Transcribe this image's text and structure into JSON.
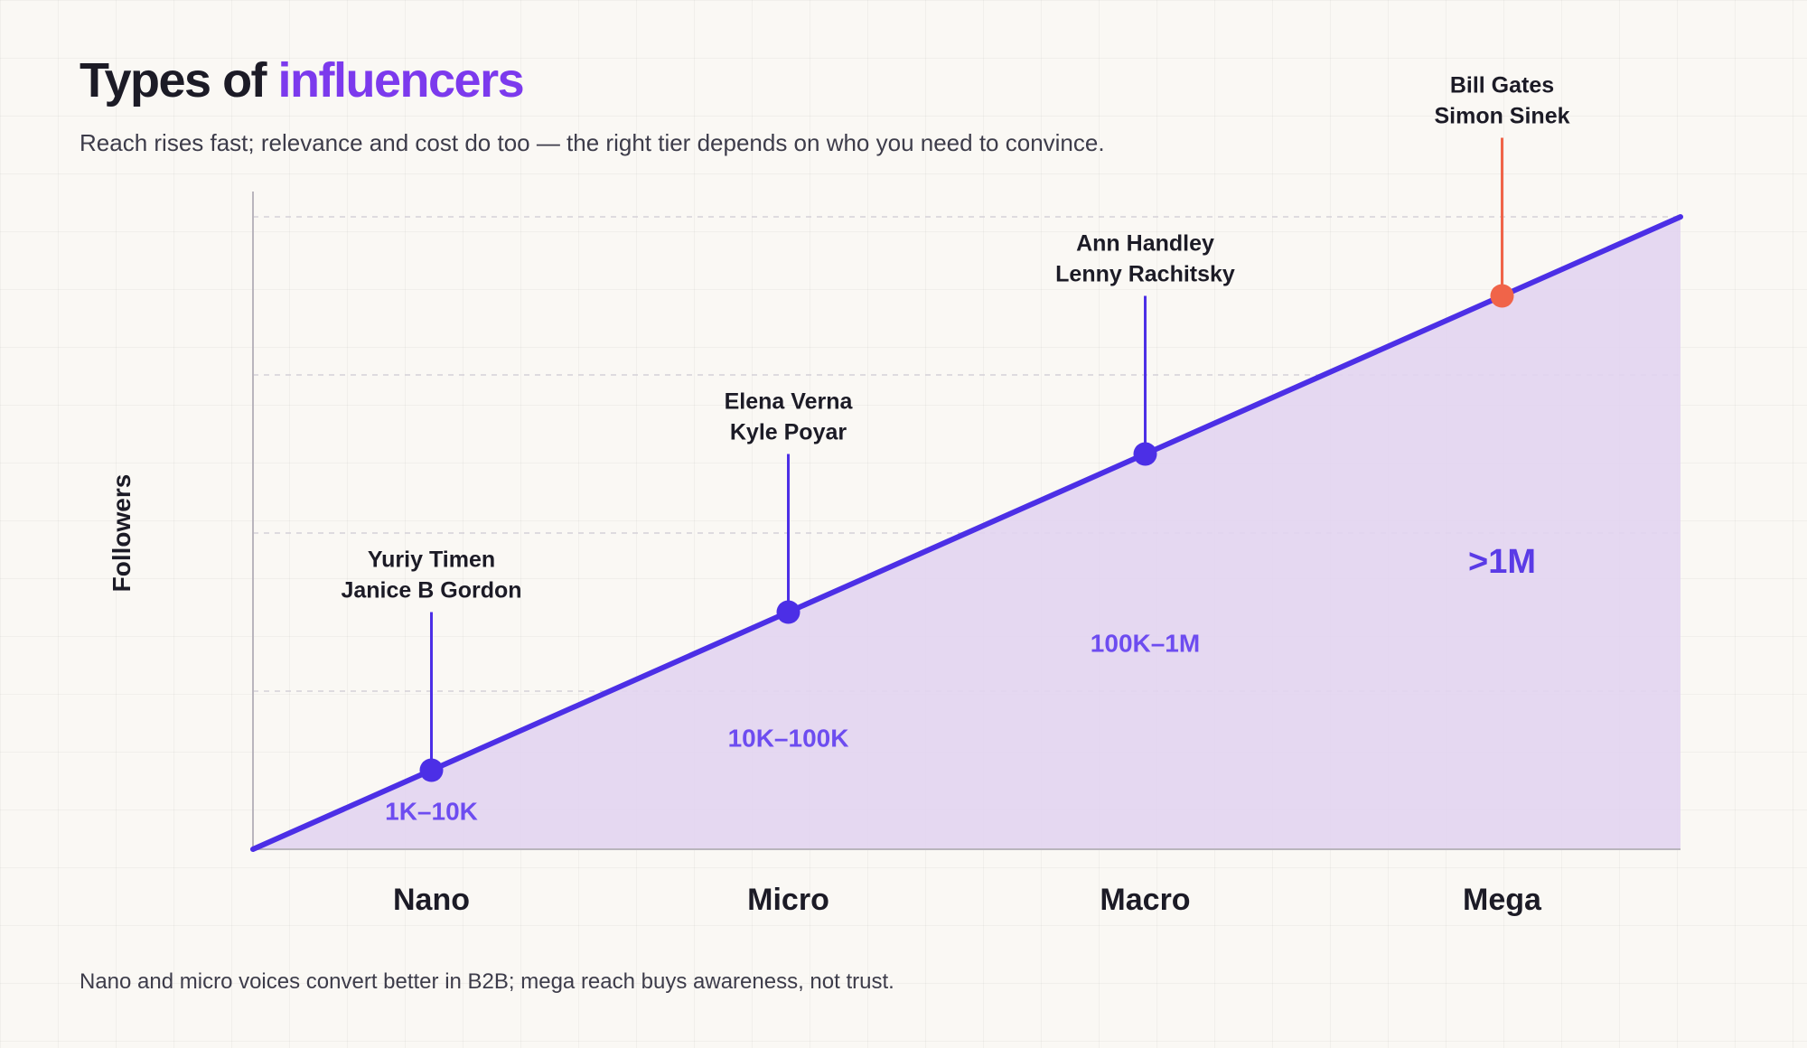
{
  "header": {
    "title_prefix": "Types of ",
    "title_accent": "influencers",
    "subtitle": "Reach rises fast; relevance and cost do too — the right tier depends on who you need to convince."
  },
  "footer": {
    "note": "Nano and micro voices convert better in B2B; mega reach buys awareness, not trust."
  },
  "colors": {
    "accent": "#7c3aed",
    "line": "#4c2fe6",
    "area": "#e2d4f1",
    "highlight": "#f06449"
  },
  "chart_data": {
    "type": "area",
    "title": "Types of influencers",
    "ylabel": "Followers",
    "xlabel": "",
    "ylim": [
      0,
      4
    ],
    "grid": true,
    "categories": [
      "Nano",
      "Micro",
      "Macro",
      "Mega"
    ],
    "line_start": 0,
    "line_end": 4,
    "points": [
      {
        "tier": "Nano",
        "value": 0.5,
        "range": "1K–10K",
        "influencers": [
          "Yuriy Timen",
          "Janice B Gordon"
        ],
        "highlight": false
      },
      {
        "tier": "Micro",
        "value": 1.5,
        "range": "10K–100K",
        "influencers": [
          "Elena Verna",
          "Kyle Poyar"
        ],
        "highlight": false
      },
      {
        "tier": "Macro",
        "value": 2.5,
        "range": "100K–1M",
        "influencers": [
          "Ann Handley",
          "Lenny Rachitsky"
        ],
        "highlight": false
      },
      {
        "tier": "Mega",
        "value": 3.5,
        "range": ">1M",
        "influencers": [
          "Bill Gates",
          "Simon Sinek"
        ],
        "highlight": true
      }
    ]
  }
}
